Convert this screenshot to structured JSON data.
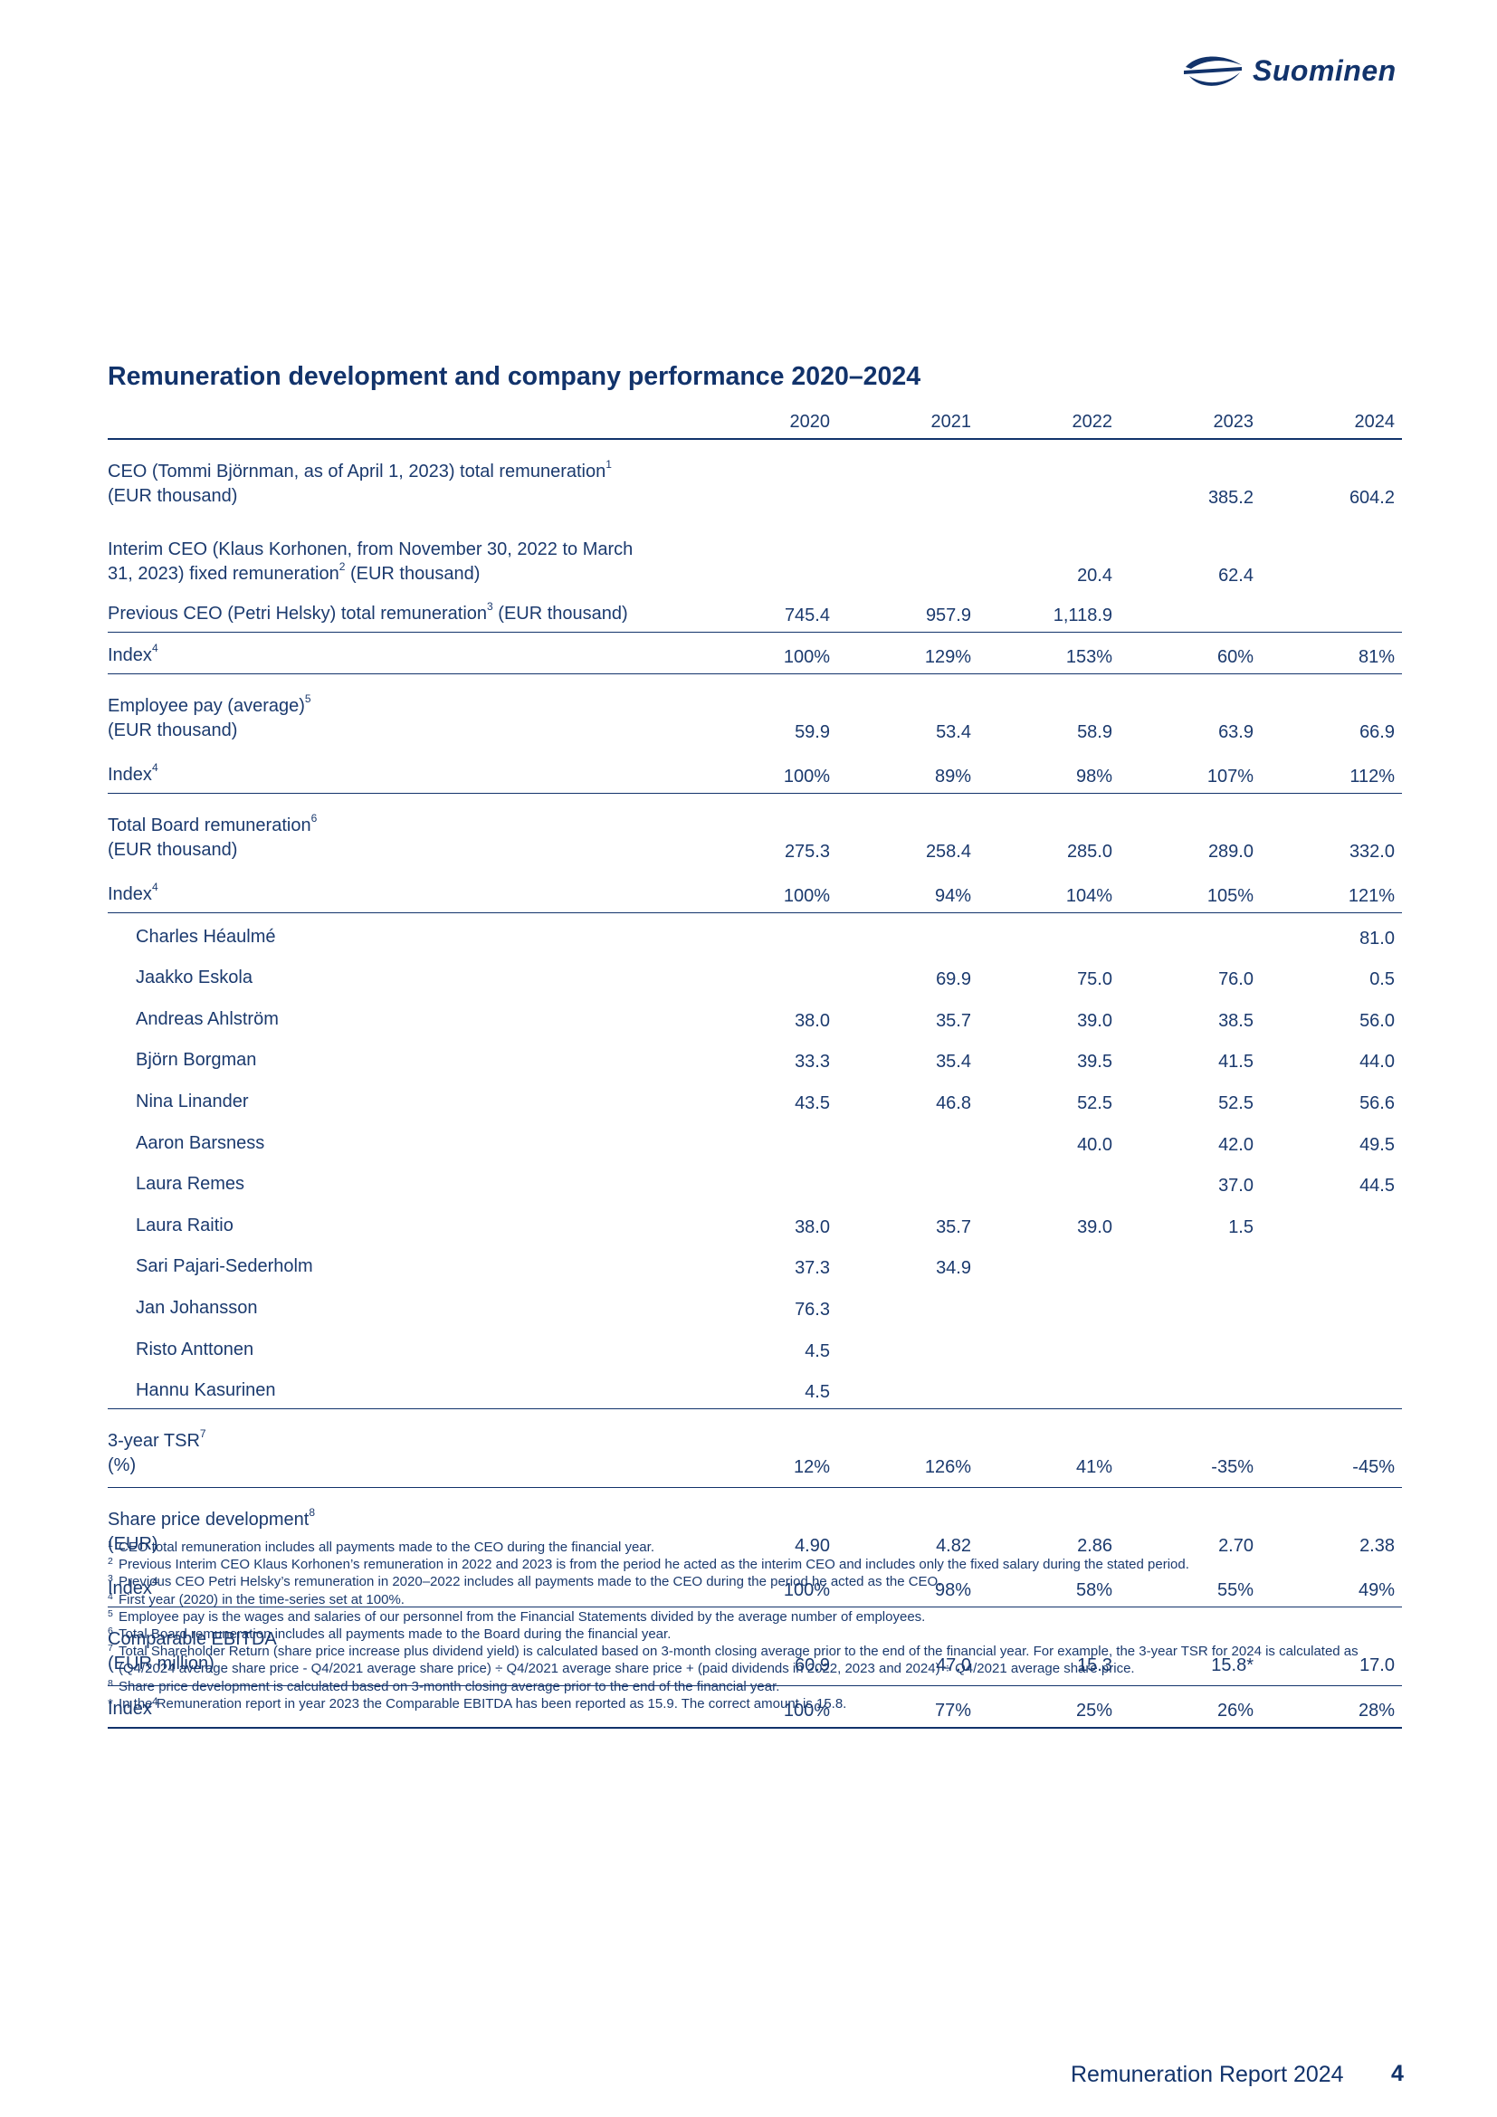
{
  "brand": {
    "name": "Suominen",
    "logo_icon": "suominen-logo-mark-icon",
    "color": "#12336b"
  },
  "title": "Remuneration development and company performance 2020–2024",
  "table": {
    "years": [
      "2020",
      "2021",
      "2022",
      "2023",
      "2024"
    ],
    "rows": [
      {
        "label": "CEO (Tommi Björnman, as of April 1, 2023) total remuneration",
        "sup": "1",
        "label2": "(EUR thousand)",
        "values": [
          "",
          "",
          "",
          "385.2",
          "604.2"
        ]
      },
      {
        "label": "Interim CEO (Klaus Korhonen, from November 30, 2022 to March",
        "label2": "31, 2023) fixed remuneration",
        "sup2": "2",
        "label2b": " (EUR thousand)",
        "values": [
          "",
          "",
          "20.4",
          "62.4",
          ""
        ]
      },
      {
        "label": "Previous CEO (Petri Helsky) total remuneration",
        "sup": "3",
        "label_after": " (EUR thousand)",
        "values": [
          "745.4",
          "957.9",
          "1,118.9",
          "",
          ""
        ]
      },
      {
        "label": "Index",
        "sup": "4",
        "values": [
          "100%",
          "129%",
          "153%",
          "60%",
          "81%"
        ]
      },
      {
        "label": "Employee pay (average)",
        "sup": "5",
        "label2": "(EUR thousand)",
        "values": [
          "59.9",
          "53.4",
          "58.9",
          "63.9",
          "66.9"
        ]
      },
      {
        "label": "Index",
        "sup": "4",
        "values": [
          "100%",
          "89%",
          "98%",
          "107%",
          "112%"
        ]
      },
      {
        "label": "Total Board remuneration",
        "sup": "6",
        "label2": "(EUR thousand)",
        "values": [
          "275.3",
          "258.4",
          "285.0",
          "289.0",
          "332.0"
        ]
      },
      {
        "label": "Index",
        "sup": "4",
        "values": [
          "100%",
          "94%",
          "104%",
          "105%",
          "121%"
        ]
      },
      {
        "label": "Charles Héaulmé",
        "values": [
          "",
          "",
          "",
          "",
          "81.0"
        ]
      },
      {
        "label": "Jaakko Eskola",
        "values": [
          "",
          "69.9",
          "75.0",
          "76.0",
          "0.5"
        ]
      },
      {
        "label": "Andreas Ahlström",
        "values": [
          "38.0",
          "35.7",
          "39.0",
          "38.5",
          "56.0"
        ]
      },
      {
        "label": "Björn Borgman",
        "values": [
          "33.3",
          "35.4",
          "39.5",
          "41.5",
          "44.0"
        ]
      },
      {
        "label": "Nina Linander",
        "values": [
          "43.5",
          "46.8",
          "52.5",
          "52.5",
          "56.6"
        ]
      },
      {
        "label": "Aaron Barsness",
        "values": [
          "",
          "",
          "40.0",
          "42.0",
          "49.5"
        ]
      },
      {
        "label": "Laura Remes",
        "values": [
          "",
          "",
          "",
          "37.0",
          "44.5"
        ]
      },
      {
        "label": "Laura Raitio",
        "values": [
          "38.0",
          "35.7",
          "39.0",
          "1.5",
          ""
        ]
      },
      {
        "label": "Sari Pajari-Sederholm",
        "values": [
          "37.3",
          "34.9",
          "",
          "",
          ""
        ]
      },
      {
        "label": "Jan Johansson",
        "values": [
          "76.3",
          "",
          "",
          "",
          ""
        ]
      },
      {
        "label": "Risto Anttonen",
        "values": [
          "4.5",
          "",
          "",
          "",
          ""
        ]
      },
      {
        "label": "Hannu Kasurinen",
        "values": [
          "4.5",
          "",
          "",
          "",
          ""
        ]
      },
      {
        "label": "3-year TSR",
        "sup": "7",
        "label2": "(%)",
        "values": [
          "12%",
          "126%",
          "41%",
          "-35%",
          "-45%"
        ]
      },
      {
        "label": "Share price development",
        "sup": "8",
        "label2": "(EUR)",
        "values": [
          "4.90",
          "4.82",
          "2.86",
          "2.70",
          "2.38"
        ]
      },
      {
        "label": "Index",
        "sup": "4",
        "values": [
          "100%",
          "98%",
          "58%",
          "55%",
          "49%"
        ]
      },
      {
        "label": "Comparable EBITDA",
        "label2": "(EUR million)",
        "values": [
          "60.9",
          "47.0",
          "15.3",
          "15.8*",
          "17.0"
        ]
      },
      {
        "label": "Index",
        "sup": "4",
        "values": [
          "100%",
          "77%",
          "25%",
          "26%",
          "28%"
        ]
      }
    ]
  },
  "footnotes": [
    {
      "mark": "1",
      "text": "CEO total remuneration includes all payments made to the CEO during the financial year."
    },
    {
      "mark": "2",
      "text": "Previous Interim CEO Klaus Korhonen’s remuneration in 2022 and 2023 is from the period he acted as the interim CEO and includes only the fixed salary during the stated period."
    },
    {
      "mark": "3",
      "text": "Previous CEO Petri Helsky’s remuneration in 2020–2022 includes all payments made to the CEO during the period he acted as the CEO."
    },
    {
      "mark": "4",
      "text": "First year (2020) in the time-series set at 100%."
    },
    {
      "mark": "5",
      "text": "Employee pay is the wages and salaries of our personnel from the Financial Statements divided by the average number of employees."
    },
    {
      "mark": "6",
      "text": "Total Board remuneration includes all payments made to the Board during the financial year."
    },
    {
      "mark": "7",
      "text": "Total Shareholder Return (share price increase plus dividend yield) is calculated based on 3-month closing average prior to the end of the financial year. For example, the 3-year TSR for 2024 is calculated as (Q4/2024 average share price - Q4/2021 average share price) ÷ Q4/2021 average share price + (paid dividends in 2022, 2023 and 2024) ÷ Q4/2021 average share price."
    },
    {
      "mark": "8",
      "text": "Share price development is calculated based on 3-month closing average prior to the end of the financial year."
    },
    {
      "mark": "*",
      "text": "In the Remuneration report in year 2023 the Comparable EBITDA has been reported as 15.9. The correct amount is 15.8."
    }
  ],
  "footer": {
    "label": "Remuneration Report 2024",
    "page": "4"
  }
}
